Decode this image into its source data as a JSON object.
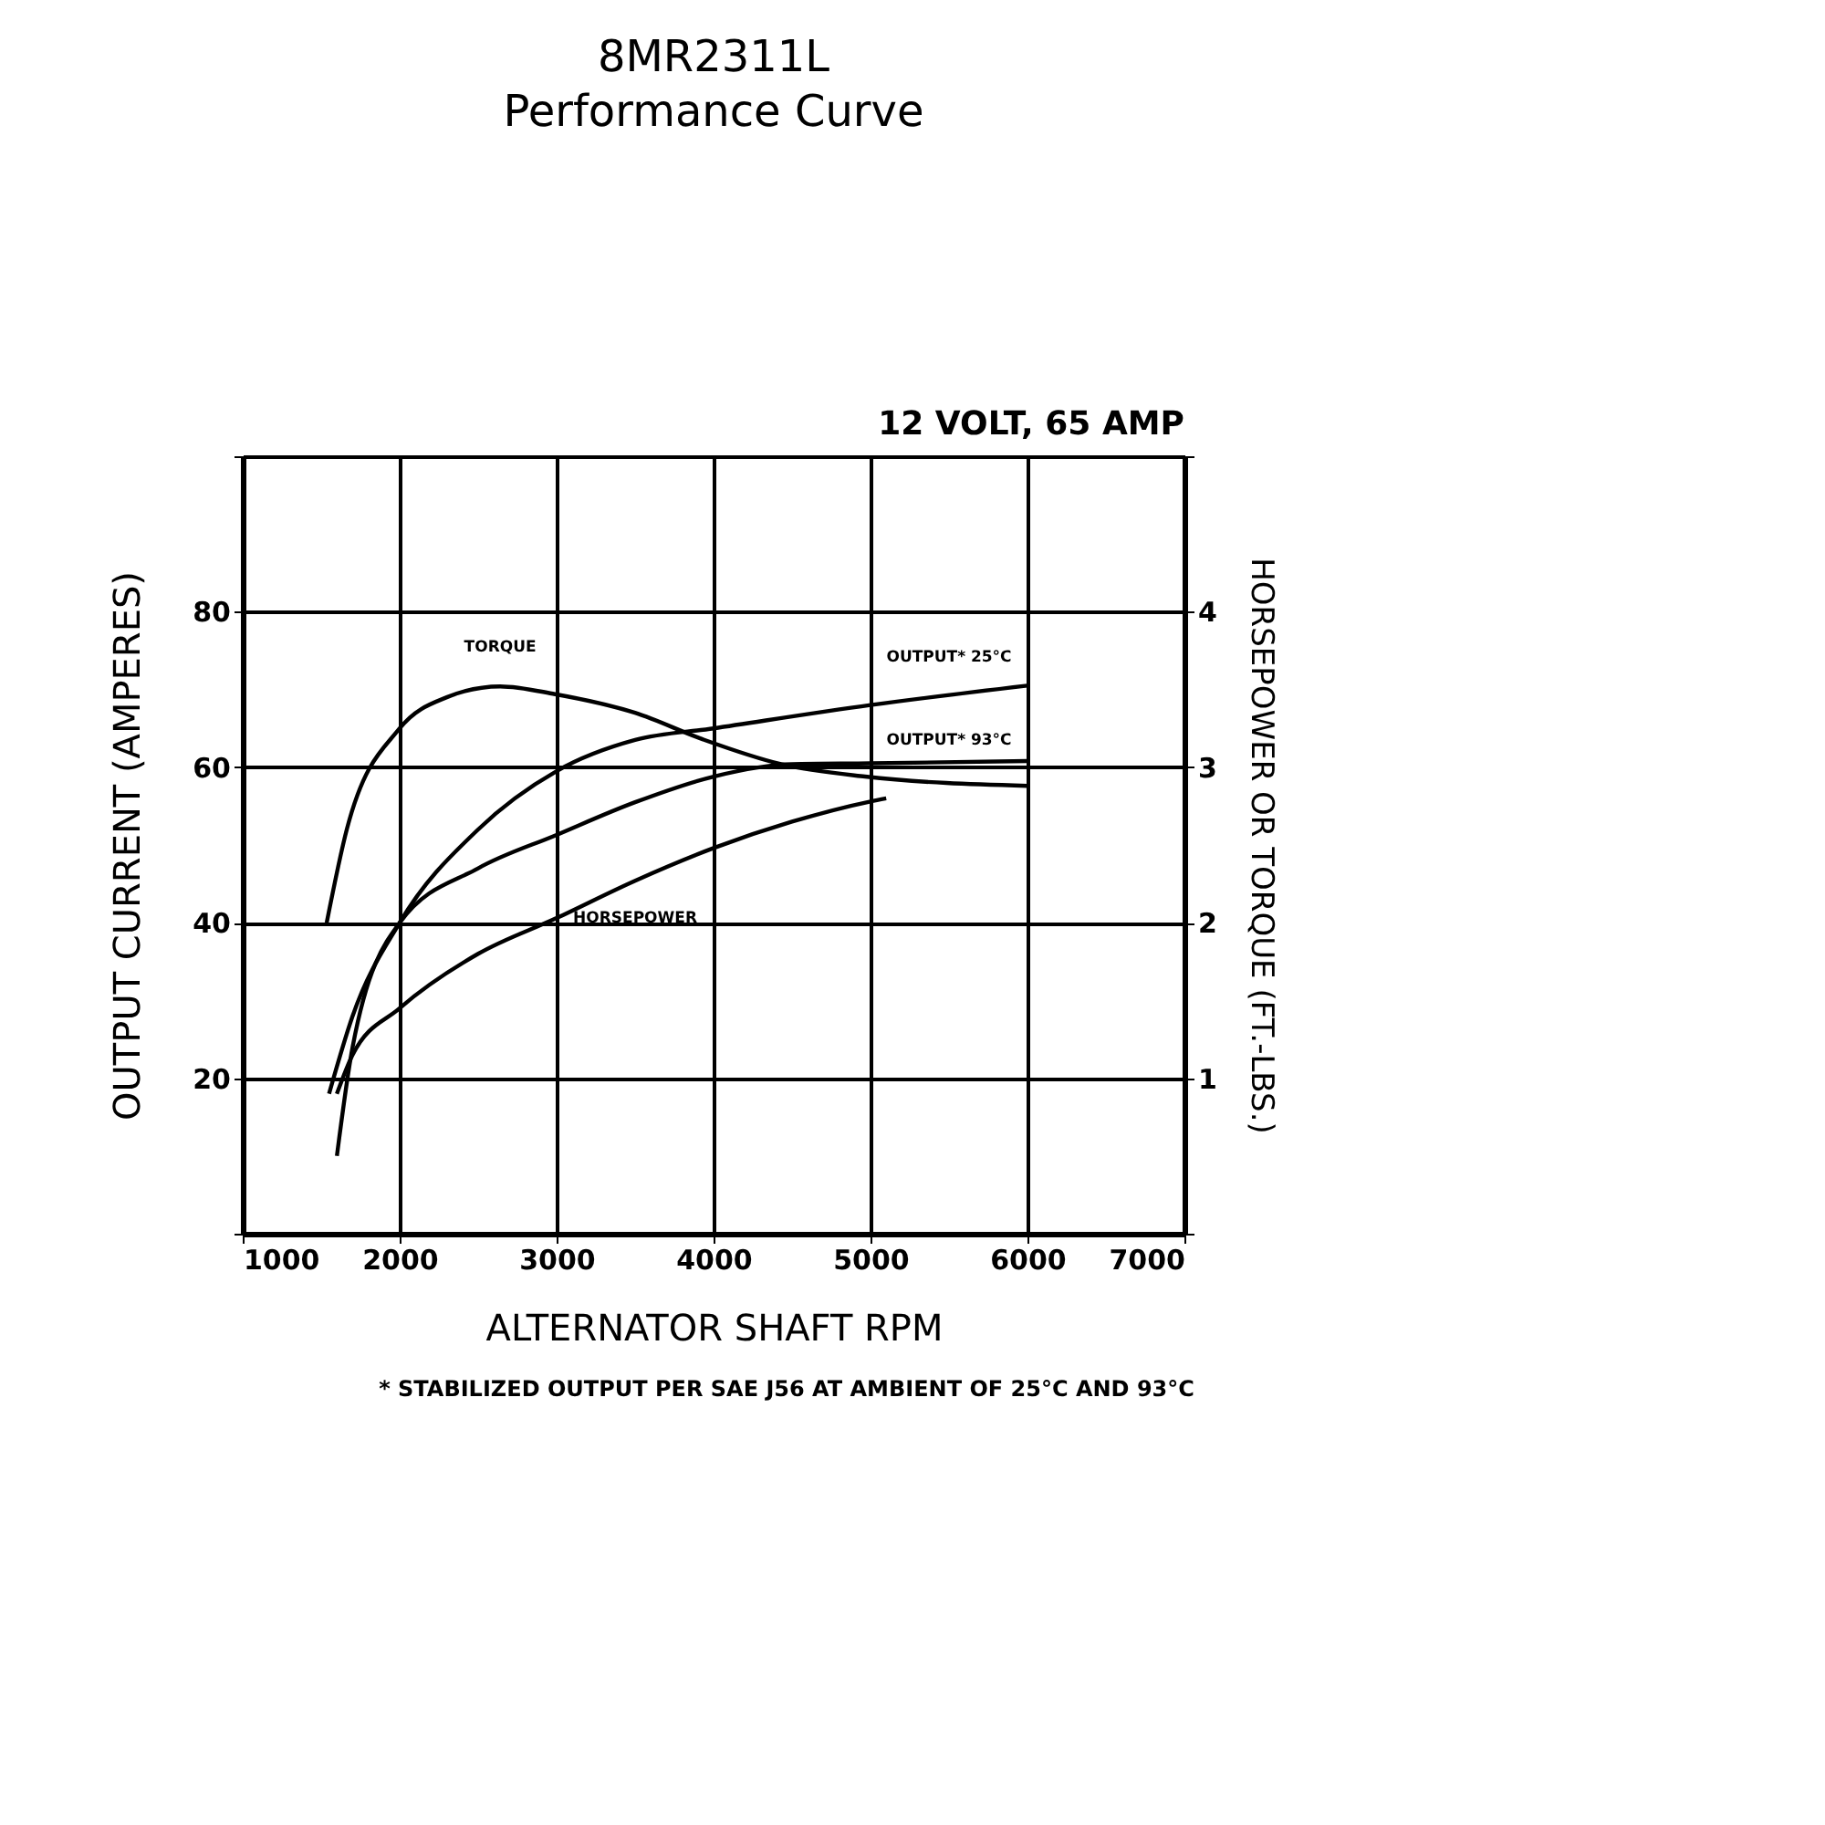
{
  "chart_data": {
    "type": "line",
    "title": "8MR2311L",
    "subtitle": "Performance Curve",
    "xlabel": "ALTERNATOR SHAFT RPM",
    "ylabel": "OUTPUT CURRENT (AMPERES)",
    "y2label": "HORSEPOWER OR TORQUE (FT.-LBS.)",
    "xlim": [
      1000,
      7000
    ],
    "xticks": [
      1000,
      2000,
      3000,
      4000,
      5000,
      6000,
      7000
    ],
    "ylim": [
      0,
      100
    ],
    "yticks": [
      {
        "value": 0,
        "label": null
      },
      20,
      40,
      60,
      80,
      {
        "value": 100,
        "label": null
      }
    ],
    "y2lim": [
      0,
      5
    ],
    "y2ticks": [
      {
        "value": 0,
        "label": null
      },
      1,
      2,
      3,
      4,
      {
        "value": 5,
        "label": null
      }
    ],
    "grid": true,
    "marker": "none",
    "line_style": "solid",
    "series": [
      {
        "name": "TORQUE",
        "color": "#000000",
        "axis": "y2",
        "x": [
          1535,
          1663,
          2000,
          2300,
          2640,
          2990,
          3500,
          3930,
          4430,
          4965,
          6000
        ],
        "values": [
          2.0,
          2.6,
          3.25,
          3.45,
          3.52,
          3.47,
          3.35,
          3.18,
          3.02,
          2.94,
          2.88
        ]
      },
      {
        "name": "OUTPUT* 25°C",
        "color": "#000000",
        "x": [
          1550,
          1700,
          2000,
          2500,
          3000,
          3500,
          4000,
          5000,
          6000
        ],
        "values": [
          18,
          28,
          40,
          52,
          59.5,
          63.5,
          65,
          68,
          70.5
        ]
      },
      {
        "name": "OUTPUT* 93°C",
        "color": "#000000",
        "x": [
          1600,
          1700,
          2000,
          2500,
          3000,
          3500,
          4000,
          4500,
          5000,
          6000
        ],
        "values": [
          10,
          24,
          40,
          47,
          51.3,
          55.5,
          58.8,
          60.4,
          60.5,
          60.8
        ]
      },
      {
        "name": "HORSEPOWER",
        "color": "#000000",
        "axis": "y2",
        "x": [
          1600,
          1700,
          2000,
          2500,
          3000,
          3500,
          4000,
          4500,
          5000,
          5100
        ],
        "values": [
          0.9,
          1.15,
          1.45,
          1.8,
          2.03,
          2.27,
          2.48,
          2.65,
          2.78,
          2.8
        ]
      }
    ],
    "annotations": [
      "12 VOLT, 65 AMP",
      "* STABILIZED OUTPUT PER SAE J56 AT AMBIENT OF 25°C AND 93°C"
    ]
  }
}
